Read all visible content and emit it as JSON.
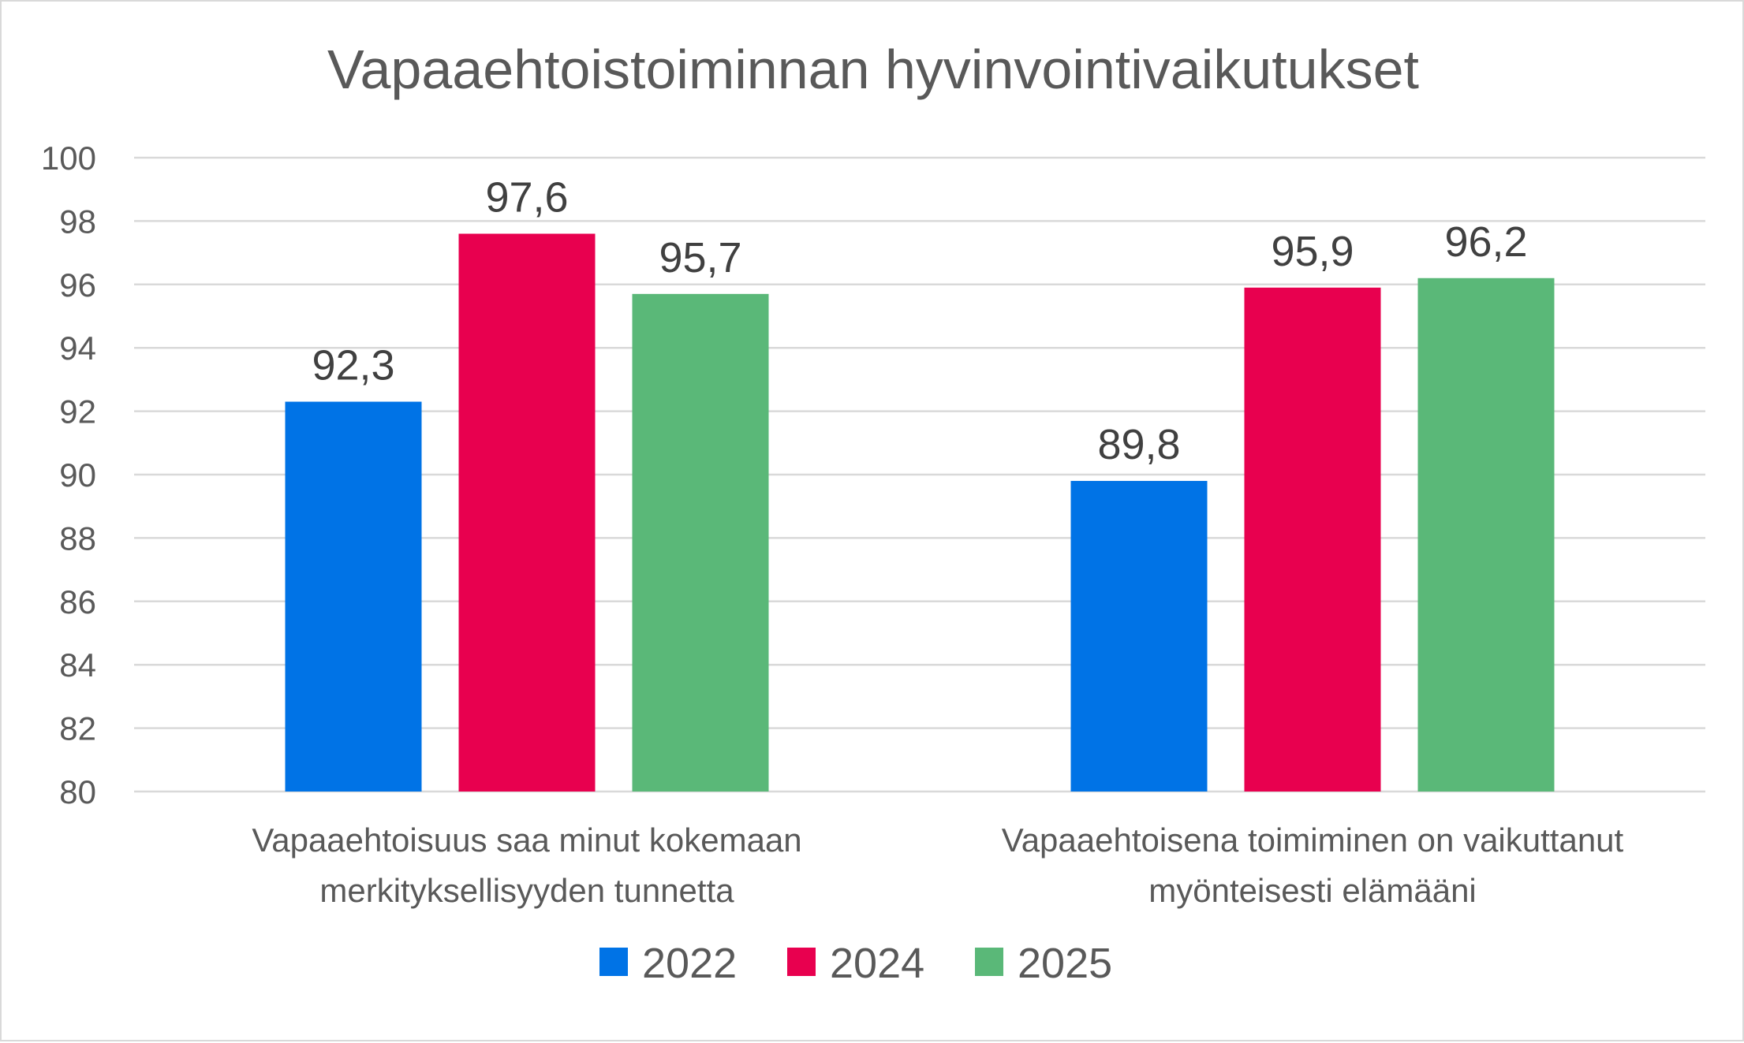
{
  "chart_data": {
    "type": "bar",
    "title": "Vapaaehtoistoiminnan hyvinvointivaikutukset",
    "categories": [
      [
        "Vapaaehtoisuus saa minut kokemaan",
        "merkityksellisyyden tunnetta"
      ],
      [
        "Vapaaehtoisena toimiminen on vaikuttanut",
        "myönteisesti elämääni"
      ]
    ],
    "series": [
      {
        "name": "2022",
        "color": "#0073e6",
        "values": [
          92.3,
          89.8
        ],
        "labels": [
          "92,3",
          "89,8"
        ]
      },
      {
        "name": "2024",
        "color": "#e8004f",
        "values": [
          97.6,
          95.9
        ],
        "labels": [
          "97,6",
          "95,9"
        ]
      },
      {
        "name": "2025",
        "color": "#5ab878",
        "values": [
          95.7,
          96.2
        ],
        "labels": [
          "95,7",
          "96,2"
        ]
      }
    ],
    "ylim": [
      80,
      100
    ],
    "yticks": [
      80,
      82,
      84,
      86,
      88,
      90,
      92,
      94,
      96,
      98,
      100
    ],
    "grid": true,
    "legend_position": "bottom"
  }
}
